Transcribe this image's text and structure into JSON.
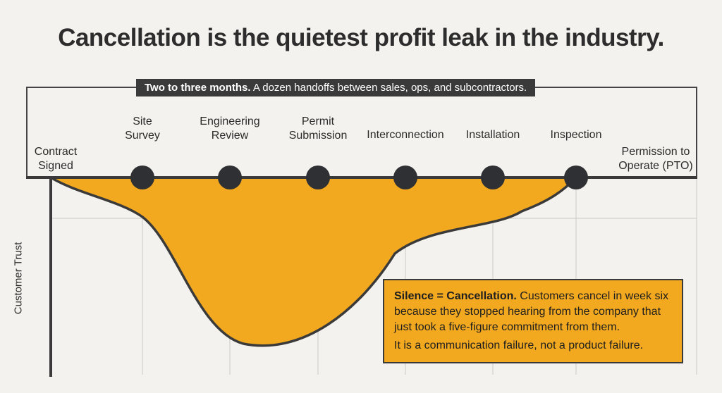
{
  "headline": "Cancellation is the quietest profit leak in the industry.",
  "duration": {
    "bold": "Two to three months.",
    "rest": " A dozen handoffs between sales, ops, and subcontractors."
  },
  "stages": [
    {
      "line1": "Contract",
      "line2": "Signed"
    },
    {
      "line1": "Site",
      "line2": "Survey"
    },
    {
      "line1": "Engineering",
      "line2": "Review"
    },
    {
      "line1": "Permit",
      "line2": "Submission"
    },
    {
      "line1": "Interconnection",
      "line2": ""
    },
    {
      "line1": "Installation",
      "line2": ""
    },
    {
      "line1": "Inspection",
      "line2": ""
    },
    {
      "line1": "Permission to",
      "line2": "Operate (PTO)"
    }
  ],
  "y_axis_label": "Customer Trust",
  "callout": {
    "bold": "Silence = Cancellation.",
    "text1": " Customers cancel in week six because they stopped hearing from the company that just took a five-figure commitment from them.",
    "text2": "It is a communication failure, not a product failure."
  },
  "colors": {
    "fill": "#f2a81f",
    "line": "#3a3a3a",
    "background": "#f3f2ee",
    "grid": "#c9c9c5"
  }
}
